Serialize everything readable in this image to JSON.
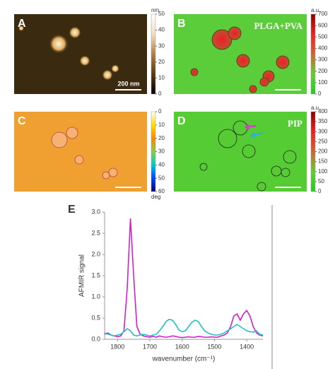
{
  "chart_data": [
    {
      "type": "image",
      "label": "A",
      "scale_bar": "200 nm",
      "colorbar": {
        "lim": [
          0,
          50
        ],
        "ticks": [
          0,
          10,
          20,
          30,
          40,
          50
        ],
        "unit": "nm",
        "colors": [
          "#000000",
          "#5a3a10",
          "#b08040",
          "#f0e0c0",
          "#ffffff"
        ]
      }
    },
    {
      "type": "image",
      "label": "B",
      "annotation": "PLGA+PVA",
      "colorbar": {
        "lim": [
          0,
          700
        ],
        "ticks": [
          0,
          100,
          200,
          300,
          400,
          500,
          600,
          700
        ],
        "unit": "a.u.",
        "colors": [
          "#22cc22",
          "#66cc33",
          "#cc6633",
          "#ee2222",
          "#880000"
        ]
      }
    },
    {
      "type": "image",
      "label": "C",
      "colorbar": {
        "lim": [
          0,
          60
        ],
        "ticks": [
          0,
          10,
          20,
          30,
          40,
          50,
          60
        ],
        "unit": "deg",
        "reversed": true,
        "colors": [
          "#ffffff",
          "#ffdd00",
          "#ff8800",
          "#88cc44",
          "#00cccc",
          "#0044ff",
          "#000066"
        ]
      }
    },
    {
      "type": "image",
      "label": "D",
      "annotation": "PIP",
      "colorbar": {
        "lim": [
          0,
          400
        ],
        "ticks": [
          0,
          50,
          100,
          150,
          200,
          250,
          300,
          350,
          400
        ],
        "unit": "a.u.",
        "colors": [
          "#22cc22",
          "#66cc33",
          "#cc6633",
          "#ee2222",
          "#880000"
        ]
      }
    },
    {
      "type": "line",
      "label": "E",
      "x_label": "wavenumber (cm⁻¹)",
      "y_label": "AFMIR signal",
      "x": [
        1840,
        1830,
        1820,
        1810,
        1800,
        1790,
        1780,
        1770,
        1760,
        1750,
        1740,
        1730,
        1720,
        1710,
        1700,
        1690,
        1680,
        1670,
        1660,
        1650,
        1640,
        1630,
        1620,
        1610,
        1600,
        1590,
        1580,
        1570,
        1560,
        1550,
        1540,
        1530,
        1520,
        1510,
        1500,
        1490,
        1480,
        1470,
        1460,
        1450,
        1440,
        1430,
        1420,
        1410,
        1400,
        1390,
        1380,
        1370,
        1360,
        1350
      ],
      "xlim": [
        1840,
        1350
      ],
      "xticks": [
        1800,
        1700,
        1600,
        1500,
        1400
      ],
      "ylim": [
        0,
        3.0
      ],
      "yticks": [
        {
          "value": 0,
          "label": "0.0"
        },
        0.5,
        {
          "value": 1,
          "label": "1.0"
        },
        1.5,
        {
          "value": 2,
          "label": "2.0"
        },
        2.5,
        {
          "value": 3,
          "label": "3.0"
        }
      ],
      "series": [
        {
          "color": "#d020c8",
          "values": [
            0.12,
            0.15,
            0.1,
            0.08,
            0.06,
            0.08,
            0.2,
            1.2,
            2.85,
            1.5,
            0.3,
            0.12,
            0.08,
            0.06,
            0.05,
            0.07,
            0.05,
            0.08,
            0.06,
            0.05,
            0.06,
            0.08,
            0.07,
            0.05,
            0.04,
            0.05,
            0.06,
            0.05,
            0.05,
            0.07,
            0.06,
            0.05,
            0.05,
            0.06,
            0.05,
            0.05,
            0.08,
            0.1,
            0.15,
            0.3,
            0.55,
            0.6,
            0.45,
            0.6,
            0.68,
            0.55,
            0.3,
            0.15,
            0.1,
            0.08
          ]
        },
        {
          "color": "#20c0c8",
          "values": [
            0.15,
            0.12,
            0.1,
            0.08,
            0.1,
            0.12,
            0.18,
            0.25,
            0.2,
            0.1,
            0.08,
            0.1,
            0.12,
            0.1,
            0.08,
            0.1,
            0.12,
            0.2,
            0.3,
            0.42,
            0.47,
            0.45,
            0.35,
            0.22,
            0.18,
            0.2,
            0.3,
            0.4,
            0.45,
            0.42,
            0.3,
            0.2,
            0.15,
            0.12,
            0.1,
            0.1,
            0.12,
            0.15,
            0.2,
            0.25,
            0.3,
            0.35,
            0.3,
            0.25,
            0.2,
            0.18,
            0.17,
            0.2,
            0.12,
            0.1
          ]
        }
      ]
    }
  ]
}
